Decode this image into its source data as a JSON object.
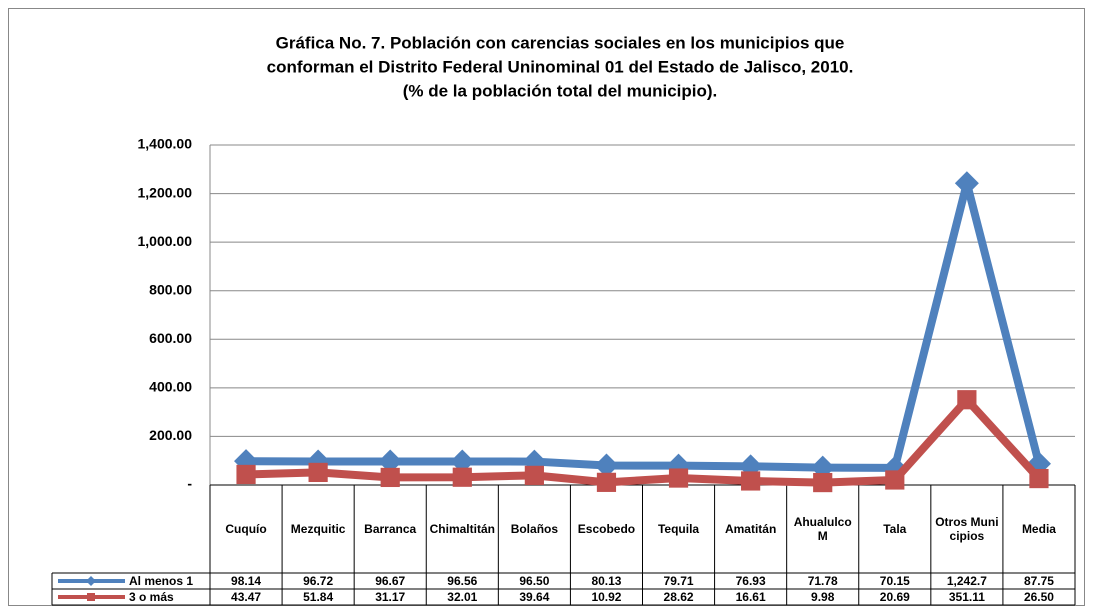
{
  "chart_data": {
    "type": "line",
    "title": [
      "Gráfica No. 7. Población con carencias sociales en los municipios que",
      "conforman el Distrito Federal Uninominal 01 del Estado de Jalisco, 2010.",
      "(% de la población total del municipio)."
    ],
    "categories": [
      "Cuquío",
      "Mezquitic",
      "Barranca",
      "Chimaltitán",
      "Bolaños",
      "Escobedo",
      "Tequila",
      "Amatitán",
      "Ahualulco M",
      "Tala",
      "Otros Municipios",
      "Media"
    ],
    "series": [
      {
        "name": "Al menos 1",
        "color": "#4f81bd",
        "marker": "diamond",
        "values": [
          98.14,
          96.72,
          96.67,
          96.56,
          96.5,
          80.13,
          79.71,
          76.93,
          71.78,
          70.15,
          1242.7,
          87.75
        ],
        "value_labels": [
          "98.14",
          "96.72",
          "96.67",
          "96.56",
          "96.50",
          "80.13",
          "79.71",
          "76.93",
          "71.78",
          "70.15",
          "1,242.7",
          "87.75"
        ]
      },
      {
        "name": "3 o más",
        "color": "#c0504d",
        "marker": "square",
        "values": [
          43.47,
          51.84,
          31.17,
          32.01,
          39.64,
          10.92,
          28.62,
          16.61,
          9.98,
          20.69,
          351.11,
          26.5
        ],
        "value_labels": [
          "43.47",
          "51.84",
          "31.17",
          "32.01",
          "39.64",
          "10.92",
          "28.62",
          "16.61",
          "9.98",
          "20.69",
          "351.11",
          "26.50"
        ]
      }
    ],
    "ylim": [
      0,
      1400
    ],
    "yticks": [
      {
        "value": 0,
        "label": "-"
      },
      {
        "value": 200,
        "label": "200.00"
      },
      {
        "value": 400,
        "label": "400.00"
      },
      {
        "value": 600,
        "label": "600.00"
      },
      {
        "value": 800,
        "label": "800.00"
      },
      {
        "value": 1000,
        "label": "1,000.00"
      },
      {
        "value": 1200,
        "label": "1,200.00"
      },
      {
        "value": 1400,
        "label": "1,400.00"
      }
    ],
    "grid": true,
    "data_table": true
  }
}
